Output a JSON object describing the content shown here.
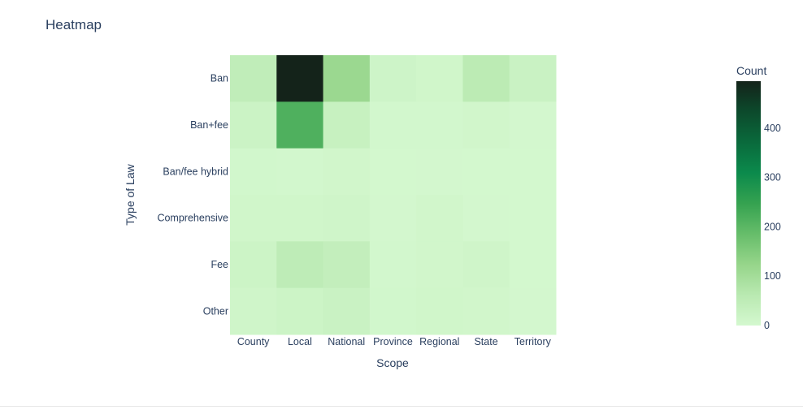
{
  "chart_data": {
    "type": "heatmap",
    "title": "Heatmap",
    "xlabel": "Scope",
    "ylabel": "Type of Law",
    "x": [
      "County",
      "Local",
      "National",
      "Province",
      "Regional",
      "State",
      "Territory"
    ],
    "y": [
      "Ban",
      "Ban+fee",
      "Ban/fee hybrid",
      "Comprehensive",
      "Fee",
      "Other"
    ],
    "z": [
      [
        45,
        495,
        115,
        15,
        10,
        55,
        25
      ],
      [
        20,
        215,
        30,
        5,
        5,
        8,
        3
      ],
      [
        6,
        5,
        8,
        2,
        3,
        2,
        2
      ],
      [
        10,
        10,
        12,
        3,
        8,
        3,
        2
      ],
      [
        18,
        50,
        40,
        5,
        8,
        12,
        2
      ],
      [
        12,
        18,
        25,
        6,
        10,
        8,
        3
      ]
    ],
    "colorscale": "Greens",
    "zmin": 0,
    "zmax": 495,
    "colorbar": {
      "title": "Count",
      "ticks": [
        0,
        100,
        200,
        300,
        400
      ]
    }
  }
}
